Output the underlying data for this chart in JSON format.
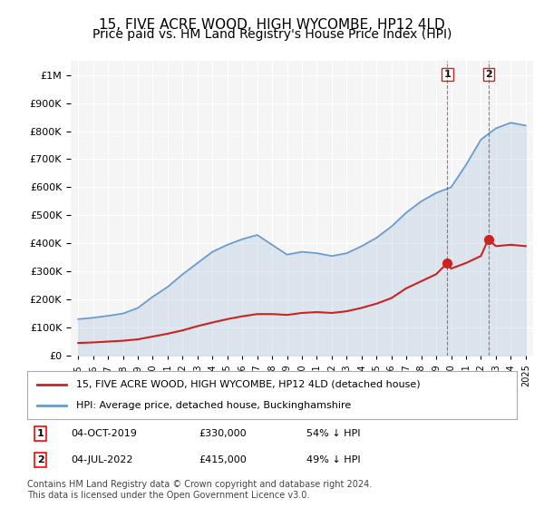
{
  "title": "15, FIVE ACRE WOOD, HIGH WYCOMBE, HP12 4LD",
  "subtitle": "Price paid vs. HM Land Registry's House Price Index (HPI)",
  "title_fontsize": 11,
  "subtitle_fontsize": 10,
  "legend_label_red": "15, FIVE ACRE WOOD, HIGH WYCOMBE, HP12 4LD (detached house)",
  "legend_label_blue": "HPI: Average price, detached house, Buckinghamshire",
  "footer": "Contains HM Land Registry data © Crown copyright and database right 2024.\nThis data is licensed under the Open Government Licence v3.0.",
  "transactions": [
    {
      "label": "1",
      "date": "04-OCT-2019",
      "price": "£330,000",
      "pct": "54% ↓ HPI",
      "year": 2019.75
    },
    {
      "label": "2",
      "date": "04-JUL-2022",
      "price": "£415,000",
      "pct": "49% ↓ HPI",
      "year": 2022.5
    }
  ],
  "transaction_values": [
    330000,
    415000
  ],
  "ylim": [
    0,
    1050000
  ],
  "xlim": [
    1994.5,
    2025.5
  ],
  "hpi_color": "#6699cc",
  "price_color": "#cc2222",
  "dashed_color": "#cc2222",
  "background_plot": "#f5f5f5",
  "background_fig": "#ffffff",
  "grid_color": "#ffffff",
  "hpi_x": [
    1995,
    1996,
    1997,
    1998,
    1999,
    2000,
    2001,
    2002,
    2003,
    2004,
    2005,
    2006,
    2007,
    2008,
    2009,
    2010,
    2011,
    2012,
    2013,
    2014,
    2015,
    2016,
    2017,
    2018,
    2019,
    2020,
    2021,
    2022,
    2023,
    2024,
    2025
  ],
  "hpi_y": [
    130000,
    135000,
    142000,
    150000,
    170000,
    210000,
    245000,
    290000,
    330000,
    370000,
    395000,
    415000,
    430000,
    395000,
    360000,
    370000,
    365000,
    355000,
    365000,
    390000,
    420000,
    460000,
    510000,
    550000,
    580000,
    600000,
    680000,
    770000,
    810000,
    830000,
    820000
  ],
  "price_x": [
    1995,
    1996,
    1997,
    1998,
    1999,
    2000,
    2001,
    2002,
    2003,
    2004,
    2005,
    2006,
    2007,
    2008,
    2009,
    2010,
    2011,
    2012,
    2013,
    2014,
    2015,
    2016,
    2017,
    2018,
    2019,
    2019.75,
    2020,
    2021,
    2022,
    2022.5,
    2023,
    2024,
    2025
  ],
  "price_y": [
    45000,
    47000,
    50000,
    53000,
    58000,
    68000,
    78000,
    90000,
    105000,
    118000,
    130000,
    140000,
    148000,
    148000,
    145000,
    152000,
    155000,
    152000,
    158000,
    170000,
    185000,
    205000,
    240000,
    265000,
    290000,
    330000,
    310000,
    330000,
    355000,
    415000,
    390000,
    395000,
    390000
  ]
}
